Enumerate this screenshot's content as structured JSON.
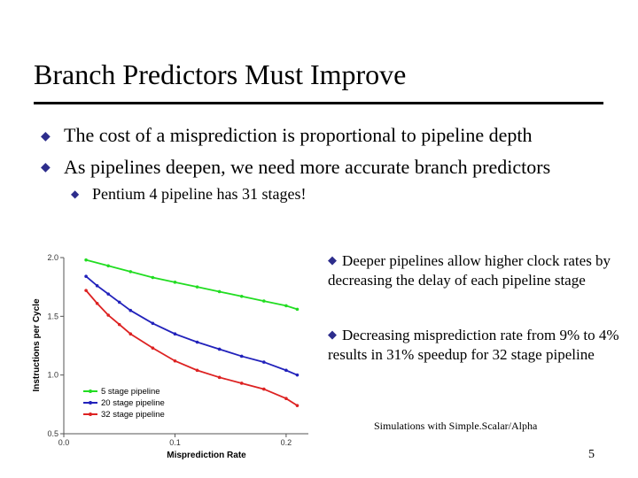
{
  "slide": {
    "title": "Branch Predictors Must Improve",
    "bullets": [
      "The cost of a misprediction is proportional to pipeline depth",
      "As pipelines deepen, we need more accurate branch predictors"
    ],
    "sub_bullet": "Pentium 4 pipeline has 31 stages!",
    "notes": [
      "Deeper pipelines allow higher clock rates by decreasing the delay of each pipeline stage",
      "Decreasing misprediction rate from 9% to 4% results in 31% speedup for 32 stage pipeline"
    ],
    "simulation_note": "Simulations with Simple.Scalar/Alpha",
    "page_number": "5",
    "bullet_glyph": "◆",
    "bullet_color": "#2d2d8c"
  },
  "chart_data": {
    "type": "line",
    "xlabel": "Misprediction Rate",
    "ylabel": "Instructions per Cycle",
    "xlim": [
      0.0,
      0.22
    ],
    "ylim": [
      0.5,
      2.0
    ],
    "xticks": [
      0.0,
      0.1,
      0.2
    ],
    "xtick_labels": [
      "0.0",
      "0.1",
      "0.2"
    ],
    "yticks": [
      0.5,
      1.0,
      1.5,
      2.0
    ],
    "ytick_labels": [
      "0.5",
      "1.0",
      "1.5",
      "2.0"
    ],
    "grid": false,
    "legend_position": "bottom-left",
    "series": [
      {
        "name": "5 stage pipeline",
        "color": "#22dd22",
        "x": [
          0.02,
          0.04,
          0.06,
          0.08,
          0.1,
          0.12,
          0.14,
          0.16,
          0.18,
          0.2,
          0.21
        ],
        "y": [
          1.98,
          1.93,
          1.88,
          1.83,
          1.79,
          1.75,
          1.71,
          1.67,
          1.63,
          1.59,
          1.56
        ]
      },
      {
        "name": "20 stage pipeline",
        "color": "#2222bb",
        "x": [
          0.02,
          0.03,
          0.04,
          0.05,
          0.06,
          0.08,
          0.1,
          0.12,
          0.14,
          0.16,
          0.18,
          0.2,
          0.21
        ],
        "y": [
          1.84,
          1.76,
          1.69,
          1.62,
          1.55,
          1.44,
          1.35,
          1.28,
          1.22,
          1.16,
          1.11,
          1.04,
          1.0
        ]
      },
      {
        "name": "32 stage pipeline",
        "color": "#dd2222",
        "x": [
          0.02,
          0.03,
          0.04,
          0.05,
          0.06,
          0.08,
          0.1,
          0.12,
          0.14,
          0.16,
          0.18,
          0.2,
          0.21
        ],
        "y": [
          1.72,
          1.61,
          1.51,
          1.43,
          1.35,
          1.23,
          1.12,
          1.04,
          0.98,
          0.93,
          0.88,
          0.8,
          0.74
        ]
      }
    ]
  }
}
